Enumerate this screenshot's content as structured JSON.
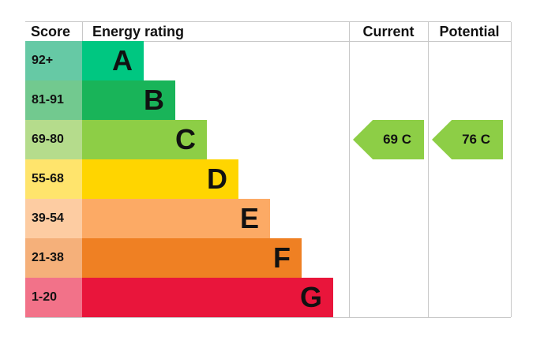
{
  "chart_data": {
    "type": "table",
    "headers": {
      "score": "Score",
      "rating": "Energy rating",
      "current": "Current",
      "potential": "Potential"
    },
    "bands": [
      {
        "letter": "A",
        "range": "92+",
        "color": "#00c781",
        "score_color": "#66c9a5"
      },
      {
        "letter": "B",
        "range": "81-91",
        "color": "#19b459",
        "score_color": "#72c98f"
      },
      {
        "letter": "C",
        "range": "69-80",
        "color": "#8dce46",
        "score_color": "#b5dc8c"
      },
      {
        "letter": "D",
        "range": "55-68",
        "color": "#ffd500",
        "score_color": "#ffe46c"
      },
      {
        "letter": "E",
        "range": "39-54",
        "color": "#fcaa65",
        "score_color": "#fdcca2"
      },
      {
        "letter": "F",
        "range": "21-38",
        "color": "#ef8023",
        "score_color": "#f5b07a"
      },
      {
        "letter": "G",
        "range": "1-20",
        "color": "#e9153b",
        "score_color": "#f27289"
      }
    ],
    "current": {
      "value": 69,
      "band": "C",
      "label": "69  C",
      "color": "#8dce46"
    },
    "potential": {
      "value": 76,
      "band": "C",
      "label": "76  C",
      "color": "#8dce46"
    }
  }
}
